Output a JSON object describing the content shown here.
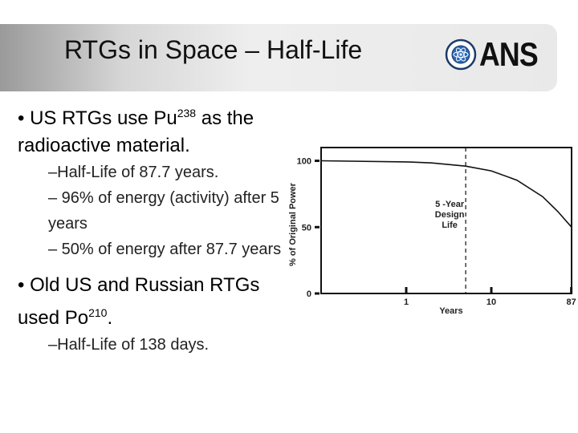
{
  "slide": {
    "title": "RTGs in Space – Half-Life",
    "logo_text": "ANS",
    "logo_seal_text": "AMERICAN NUCLEAR SOCIETY"
  },
  "bullets": [
    {
      "prefix": "• US RTGs use Pu",
      "sup": "238",
      "suffix": " as the radioactive material.",
      "subs": [
        "–Half-Life of 87.7 years.",
        "– 96% of energy (activity) after 5 years",
        "– 50% of energy after 87.7 years"
      ]
    },
    {
      "prefix": "• Old US and Russian RTGs used Po",
      "sup": "210",
      "suffix": ".",
      "subs": [
        "–Half-Life of 138 days."
      ]
    }
  ],
  "chart_data": {
    "type": "line",
    "ylabel": "% of Original Power",
    "xlabel": "Years",
    "y_ticks": [
      "100",
      "50",
      "0"
    ],
    "x_ticks": [
      "1",
      "10",
      "87"
    ],
    "ylim": [
      0,
      110
    ],
    "x_scale": "log",
    "series": [
      {
        "x": [
          0.1,
          1,
          2,
          5,
          10,
          20,
          40,
          60,
          87.7
        ],
        "y": [
          100,
          99.2,
          98.4,
          96,
          92.4,
          85.4,
          73,
          62,
          50
        ]
      }
    ],
    "annotation": {
      "x": 5,
      "lines": [
        "5 -Year",
        "Design",
        "Life"
      ]
    },
    "grid": false
  }
}
